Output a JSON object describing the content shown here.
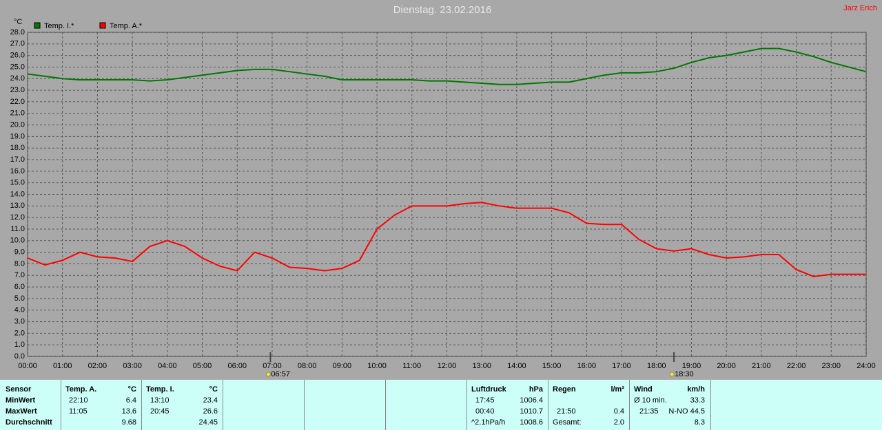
{
  "chart_data": {
    "type": "line",
    "title": "Dienstag. 23.02.2016",
    "author": "Jarz Erich",
    "y_unit": "°C",
    "x": [
      0,
      0.5,
      1,
      1.5,
      2,
      2.5,
      3,
      3.5,
      4,
      4.5,
      5,
      5.5,
      6,
      6.5,
      7,
      7.5,
      8,
      8.5,
      9,
      9.5,
      10,
      10.5,
      11,
      11.5,
      12,
      12.5,
      13,
      13.5,
      14,
      14.5,
      15,
      15.5,
      16,
      16.5,
      17,
      17.5,
      18,
      18.5,
      19,
      19.5,
      20,
      20.5,
      21,
      21.5,
      22,
      22.5,
      23,
      23.5,
      24
    ],
    "series": [
      {
        "name": "Temp. I.*",
        "color": "#007800",
        "values": [
          24.4,
          24.2,
          24.0,
          23.9,
          23.9,
          23.9,
          23.9,
          23.8,
          23.9,
          24.1,
          24.3,
          24.5,
          24.7,
          24.8,
          24.8,
          24.6,
          24.4,
          24.2,
          23.9,
          23.9,
          23.9,
          23.9,
          23.9,
          23.8,
          23.8,
          23.7,
          23.6,
          23.5,
          23.5,
          23.6,
          23.7,
          23.7,
          24.0,
          24.3,
          24.5,
          24.5,
          24.6,
          24.9,
          25.4,
          25.8,
          26.0,
          26.3,
          26.6,
          26.6,
          26.3,
          25.9,
          25.4,
          25.0,
          24.6
        ]
      },
      {
        "name": "Temp. A.*",
        "color": "#ff0000",
        "values": [
          8.5,
          7.9,
          8.3,
          9.0,
          8.6,
          8.5,
          8.2,
          9.5,
          10.0,
          9.5,
          8.5,
          7.8,
          7.4,
          9.0,
          8.5,
          7.7,
          7.6,
          7.4,
          7.6,
          8.3,
          11.0,
          12.2,
          13.0,
          13.0,
          13.0,
          13.2,
          13.3,
          13.0,
          12.8,
          12.8,
          12.8,
          12.4,
          11.5,
          11.4,
          11.4,
          10.1,
          9.3,
          9.1,
          9.3,
          8.8,
          8.5,
          8.6,
          8.8,
          8.8,
          7.5,
          6.9,
          7.1,
          7.1,
          7.1
        ]
      }
    ],
    "xlim": [
      0,
      24
    ],
    "ylim": [
      0,
      28
    ],
    "grid": true,
    "xticks": [
      {
        "value": 0,
        "label": "00:00"
      },
      {
        "value": 1,
        "label": "01:00"
      },
      {
        "value": 2,
        "label": "02:00"
      },
      {
        "value": 3,
        "label": "03:00"
      },
      {
        "value": 4,
        "label": "04:00"
      },
      {
        "value": 5,
        "label": "05:00"
      },
      {
        "value": 6,
        "label": "06:00"
      },
      {
        "value": 7,
        "label": "07:00"
      },
      {
        "value": 8,
        "label": "08:00"
      },
      {
        "value": 9,
        "label": "09:00"
      },
      {
        "value": 10,
        "label": "10:00"
      },
      {
        "value": 11,
        "label": "11:00"
      },
      {
        "value": 12,
        "label": "12:00"
      },
      {
        "value": 13,
        "label": "13:00"
      },
      {
        "value": 14,
        "label": "14:00"
      },
      {
        "value": 15,
        "label": "15:00"
      },
      {
        "value": 16,
        "label": "16:00"
      },
      {
        "value": 17,
        "label": "17:00"
      },
      {
        "value": 18,
        "label": "18:00"
      },
      {
        "value": 19,
        "label": "19:00"
      },
      {
        "value": 20,
        "label": "20:00"
      },
      {
        "value": 21,
        "label": "21:00"
      },
      {
        "value": 22,
        "label": "22:00"
      },
      {
        "value": 23,
        "label": "23:00"
      },
      {
        "value": 24,
        "label": "24:00"
      }
    ],
    "yticks": [
      {
        "value": 0,
        "label": "0.0"
      },
      {
        "value": 1,
        "label": "1.0"
      },
      {
        "value": 2,
        "label": "2.0"
      },
      {
        "value": 3,
        "label": "3.0"
      },
      {
        "value": 4,
        "label": "4.0"
      },
      {
        "value": 5,
        "label": "5.0"
      },
      {
        "value": 6,
        "label": "6.0"
      },
      {
        "value": 7,
        "label": "7.0"
      },
      {
        "value": 8,
        "label": "8.0"
      },
      {
        "value": 9,
        "label": "9.0"
      },
      {
        "value": 10,
        "label": "10.0"
      },
      {
        "value": 11,
        "label": "11.0"
      },
      {
        "value": 12,
        "label": "12.0"
      },
      {
        "value": 13,
        "label": "13.0"
      },
      {
        "value": 14,
        "label": "14.0"
      },
      {
        "value": 15,
        "label": "15.0"
      },
      {
        "value": 16,
        "label": "16.0"
      },
      {
        "value": 17,
        "label": "17.0"
      },
      {
        "value": 18,
        "label": "18.0"
      },
      {
        "value": 19,
        "label": "19.0"
      },
      {
        "value": 20,
        "label": "20.0"
      },
      {
        "value": 21,
        "label": "21.0"
      },
      {
        "value": 22,
        "label": "22.0"
      },
      {
        "value": 23,
        "label": "23.0"
      },
      {
        "value": 24,
        "label": "24.0"
      },
      {
        "value": 25,
        "label": "25.0"
      },
      {
        "value": 26,
        "label": "26.0"
      },
      {
        "value": 27,
        "label": "27.0"
      },
      {
        "value": 28,
        "label": "28.0"
      }
    ],
    "annotations": [
      {
        "value": 6.95,
        "label": "06:57"
      },
      {
        "value": 18.5,
        "label": "18:30"
      }
    ]
  },
  "stats": {
    "sensor": {
      "header": "Sensor",
      "rows": [
        "MinWert",
        "MaxWert",
        "Durchschnitt"
      ]
    },
    "temp_a": {
      "header": "Temp. A.",
      "unit": "°C",
      "rows": [
        {
          "time": "22:10",
          "value": "6.4"
        },
        {
          "time": "11:05",
          "value": "13.6"
        },
        {
          "value": "9.68"
        }
      ]
    },
    "temp_i": {
      "header": "Temp. I.",
      "unit": "°C",
      "rows": [
        {
          "time": "13:10",
          "value": "23.4"
        },
        {
          "time": "20:45",
          "value": "26.6"
        },
        {
          "value": "24.45"
        }
      ]
    },
    "pressure": {
      "header": "Luftdruck",
      "unit": "hPa",
      "rows": [
        {
          "time": "17:45",
          "value": "1006.4"
        },
        {
          "time": "00:40",
          "value": "1010.7"
        },
        {
          "time": "^2.1hPa/h",
          "value": "1008.6"
        }
      ]
    },
    "rain": {
      "header": "Regen",
      "unit": "l/m²",
      "rows": [
        {
          "time": "21:50",
          "value": "0.4"
        },
        {
          "time": "Gesamt:",
          "value": "2.0"
        }
      ]
    },
    "wind": {
      "header": "Wind",
      "unit": "km/h",
      "rows": [
        {
          "time": "Ø 10 min.",
          "value": "33.3"
        },
        {
          "time": "21:35",
          "value": "N-NO 44.5"
        },
        {
          "value": "8.3"
        }
      ]
    }
  }
}
